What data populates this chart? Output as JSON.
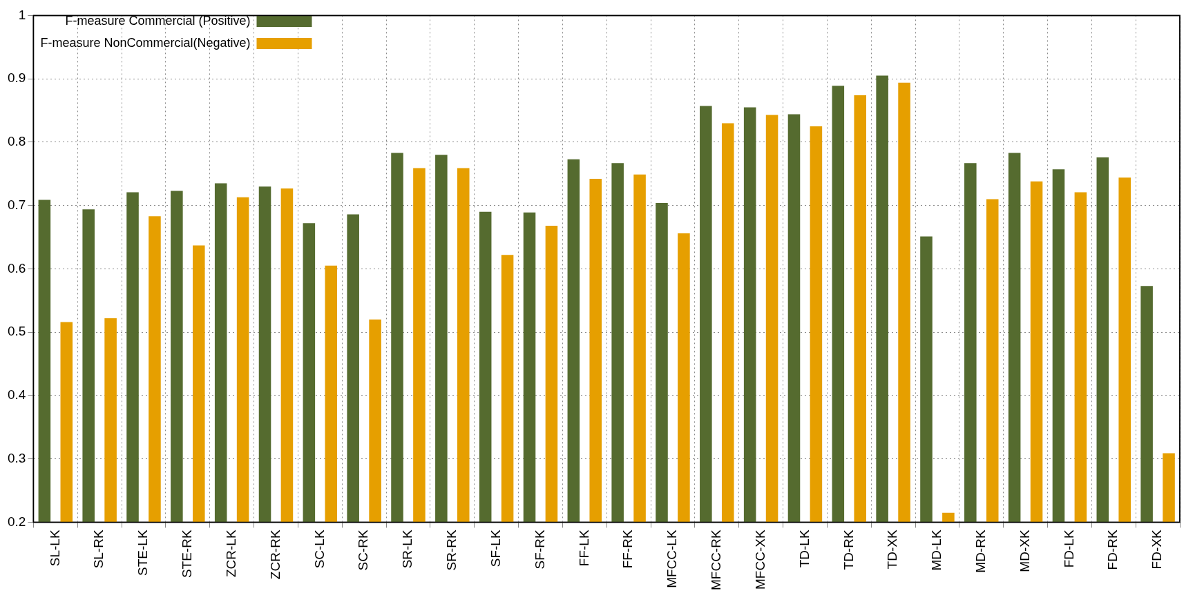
{
  "chart_data": {
    "type": "bar",
    "categories": [
      "SL-LK",
      "SL-RK",
      "STE-LK",
      "STE-RK",
      "ZCR-LK",
      "ZCR-RK",
      "SC-LK",
      "SC-RK",
      "SR-LK",
      "SR-RK",
      "SF-LK",
      "SF-RK",
      "FF-LK",
      "FF-RK",
      "MFCC-LK",
      "MFCC-RK",
      "MFCC-XK",
      "TD-LK",
      "TD-RK",
      "TD-XK",
      "MD-LK",
      "MD-RK",
      "MD-XK",
      "FD-LK",
      "FD-RK",
      "FD-XK"
    ],
    "series": [
      {
        "name": "F-measure Commercial (Positive)",
        "color": "#556b2f",
        "values": [
          0.709,
          0.694,
          0.721,
          0.723,
          0.735,
          0.73,
          0.672,
          0.686,
          0.783,
          0.78,
          0.69,
          0.689,
          0.773,
          0.767,
          0.704,
          0.857,
          0.855,
          0.844,
          0.889,
          0.905,
          0.651,
          0.767,
          0.783,
          0.757,
          0.776,
          0.573
        ]
      },
      {
        "name": "F-measure NonCommercial(Negative)",
        "color": "#e69f00",
        "values": [
          0.516,
          0.522,
          0.683,
          0.637,
          0.713,
          0.727,
          0.605,
          0.52,
          0.759,
          0.759,
          0.622,
          0.668,
          0.742,
          0.749,
          0.656,
          0.83,
          0.843,
          0.825,
          0.874,
          0.894,
          0.215,
          0.71,
          0.738,
          0.721,
          0.744,
          0.309
        ]
      }
    ],
    "ylim": [
      0.2,
      1
    ],
    "yticks": [
      0.2,
      0.3,
      0.4,
      0.5,
      0.6,
      0.7,
      0.8,
      0.9,
      {
        "value": 1,
        "label": "1"
      }
    ],
    "grid": true,
    "legend": "top left"
  }
}
